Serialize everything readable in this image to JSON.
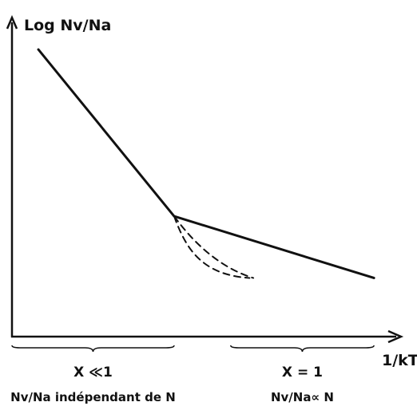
{
  "chart_data": {
    "type": "line",
    "ylabel": "Log Nv/Na",
    "xlabel": "1/kT",
    "grid": false,
    "legend": "none",
    "axis_color": "#111111",
    "line_color": "#111111",
    "series": [
      {
        "style": "solid",
        "x": [
          0.07,
          0.43,
          0.96
        ],
        "y": [
          0.93,
          0.39,
          0.19
        ]
      },
      {
        "style": "dashed",
        "x": [
          0.43,
          0.49,
          0.56,
          0.64
        ],
        "y": [
          0.39,
          0.29,
          0.22,
          0.19
        ]
      },
      {
        "style": "dashed",
        "x": [
          0.43,
          0.46,
          0.5,
          0.63
        ],
        "y": [
          0.39,
          0.29,
          0.2,
          0.19
        ]
      }
    ],
    "regions": [
      {
        "label": "X ≪1",
        "description": "Nv/Na indépendant de N",
        "x_range": [
          0.0,
          0.43
        ]
      },
      {
        "label": "X = 1",
        "description": "Nv/Na∝ N",
        "x_range": [
          0.58,
          0.96
        ]
      }
    ]
  }
}
